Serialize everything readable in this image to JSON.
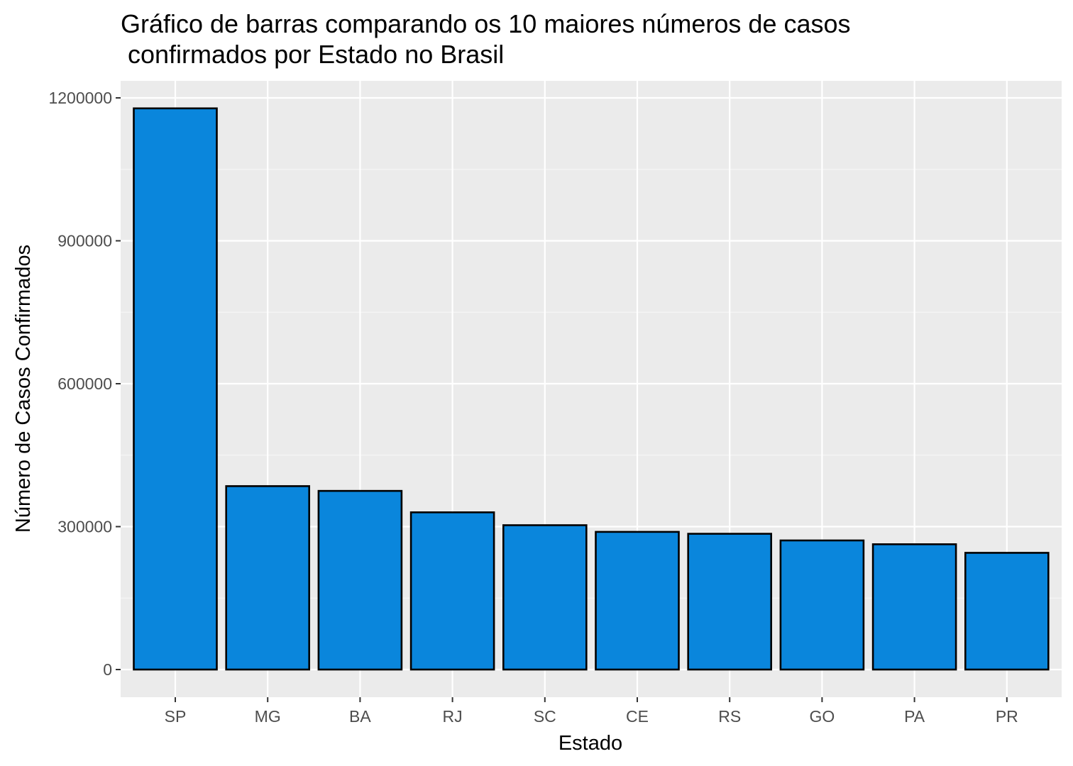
{
  "chart_data": {
    "type": "bar",
    "title_lines": [
      "Gráfico de barras comparando os 10 maiores números de casos",
      " confirmados por Estado no Brasil"
    ],
    "xlabel": "Estado",
    "ylabel": "Número de Casos Confirmados",
    "categories": [
      "SP",
      "MG",
      "BA",
      "RJ",
      "SC",
      "CE",
      "RS",
      "GO",
      "PA",
      "PR"
    ],
    "values": [
      1178000,
      385000,
      375000,
      330000,
      303000,
      289000,
      285000,
      271000,
      263000,
      245000
    ],
    "y_ticks": [
      0,
      300000,
      600000,
      900000,
      1200000
    ],
    "y_tick_labels": [
      "0",
      "300000",
      "600000",
      "900000",
      "1200000"
    ],
    "ylim": [
      -57000,
      1237000
    ],
    "grid": true,
    "legend": "none",
    "colors": {
      "bar_fill": "#0A86DC",
      "bar_stroke": "#000000",
      "panel_background": "#EBEBEB",
      "grid_major": "#FFFFFF",
      "grid_minor": "#F6F6F6",
      "tick_text": "#4D4D4D",
      "tick_mark": "#333333"
    }
  }
}
